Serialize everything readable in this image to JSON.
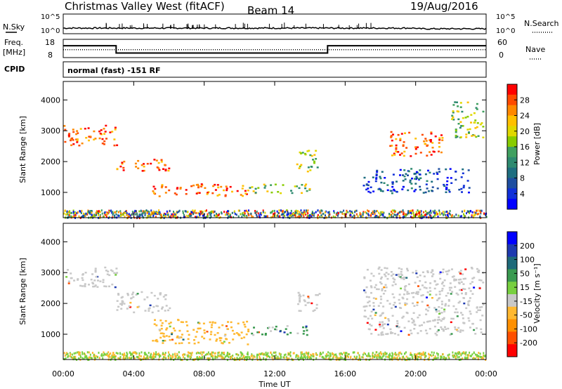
{
  "header": {
    "station": "Christmas Valley West (fitACF)",
    "beam": "Beam 14",
    "date": "19/Aug/2016"
  },
  "sky_panel": {
    "left_label": "N.Sky",
    "right_label": "N.Search",
    "left_ticks": [
      "10^5",
      "10^0"
    ],
    "right_ticks": [
      "10^5",
      "10^0"
    ]
  },
  "freq_panel": {
    "left_label_top": "Freq.",
    "left_label_bottom": "[MHz]",
    "left_ticks": [
      "18",
      "8"
    ],
    "right_label": "Nave",
    "right_ticks": [
      "60",
      "0"
    ]
  },
  "cpid_panel": {
    "label": "CPID",
    "text": "normal (fast)  -151 RF"
  },
  "power_panel": {
    "ylabel": "Slant Range [km]",
    "colorbar_label": "Power [dB]",
    "colorbar_ticks": [
      "28",
      "24",
      "20",
      "16",
      "12",
      "8",
      "4"
    ],
    "colorbar_colors": [
      "#ff0000",
      "#ff4a00",
      "#ff8800",
      "#ffc000",
      "#e0d800",
      "#88cc00",
      "#40a060",
      "#2e8a70",
      "#1e6e80",
      "#1e4ea0",
      "#1030d8",
      "#0000ff"
    ]
  },
  "velocity_panel": {
    "ylabel": "Slant Range [km]",
    "colorbar_label": "Velocity [m s⁻¹]",
    "colorbar_ticks": [
      "200",
      "100",
      "50",
      "15",
      "-15",
      "-50",
      "-100",
      "-200"
    ],
    "colorbar_colors": [
      "#ff0000",
      "#ff5000",
      "#ff9000",
      "#ffb830",
      "#c8c8c8",
      "#78d040",
      "#3a9a50",
      "#1e6a7a",
      "#1e3ab0",
      "#0000ff"
    ]
  },
  "x_axis": {
    "label": "Time UT",
    "ticks": [
      "00:00",
      "04:00",
      "08:00",
      "12:00",
      "16:00",
      "20:00",
      "00:00"
    ]
  },
  "chart_data": {
    "type": "heatmap",
    "title": "Christmas Valley West (fitACF)",
    "subtitle": "Beam 14",
    "xlabel": "Time UT",
    "ylabel": "Slant Range [km]",
    "x_range_hours": [
      0,
      24
    ],
    "y_range_km": [
      180,
      4600
    ],
    "y_ticks": [
      1000,
      2000,
      3000,
      4000
    ],
    "freq_mhz": {
      "segments": [
        {
          "start": 0,
          "end": 3.0,
          "value": 14.5
        },
        {
          "start": 3.0,
          "end": 15.0,
          "value": 10.5
        },
        {
          "start": 15.0,
          "end": 24,
          "value": 14.5
        }
      ],
      "ylim": [
        8,
        18
      ]
    },
    "nave": {
      "value": 26,
      "ylim": [
        0,
        60
      ]
    },
    "power_regions": [
      {
        "t0": 0.0,
        "t1": 3.0,
        "r0": 2550,
        "r1": 3200,
        "level": "high"
      },
      {
        "t0": 3.0,
        "t1": 6.0,
        "r0": 1700,
        "r1": 2100,
        "level": "high"
      },
      {
        "t0": 5.0,
        "t1": 10.5,
        "r0": 900,
        "r1": 1300,
        "level": "high"
      },
      {
        "t0": 10.5,
        "t1": 14.0,
        "r0": 1000,
        "r1": 1300,
        "level": "mid"
      },
      {
        "t0": 13.2,
        "t1": 14.5,
        "r0": 1700,
        "r1": 2400,
        "level": "mid"
      },
      {
        "t0": 18.5,
        "t1": 21.5,
        "r0": 2200,
        "r1": 3000,
        "level": "high"
      },
      {
        "t0": 17.0,
        "t1": 23.0,
        "r0": 1000,
        "r1": 1800,
        "level": "low"
      },
      {
        "t0": 22.0,
        "t1": 23.8,
        "r0": 2800,
        "r1": 4000,
        "level": "mid"
      }
    ],
    "velocity_regions": [
      {
        "t0": 0.0,
        "t1": 3.0,
        "r0": 2550,
        "r1": 3200,
        "v": 0
      },
      {
        "t0": 3.0,
        "t1": 6.0,
        "r0": 1700,
        "r1": 2400,
        "v": 0
      },
      {
        "t0": 5.0,
        "t1": 10.5,
        "r0": 700,
        "r1": 1500,
        "v": -40
      },
      {
        "t0": 10.5,
        "t1": 14.0,
        "r0": 1000,
        "r1": 1300,
        "v": 20
      },
      {
        "t0": 13.2,
        "t1": 14.5,
        "r0": 1700,
        "r1": 2400,
        "v": 0
      },
      {
        "t0": 17.0,
        "t1": 23.8,
        "r0": 1000,
        "r1": 3200,
        "v": 0
      }
    ]
  }
}
